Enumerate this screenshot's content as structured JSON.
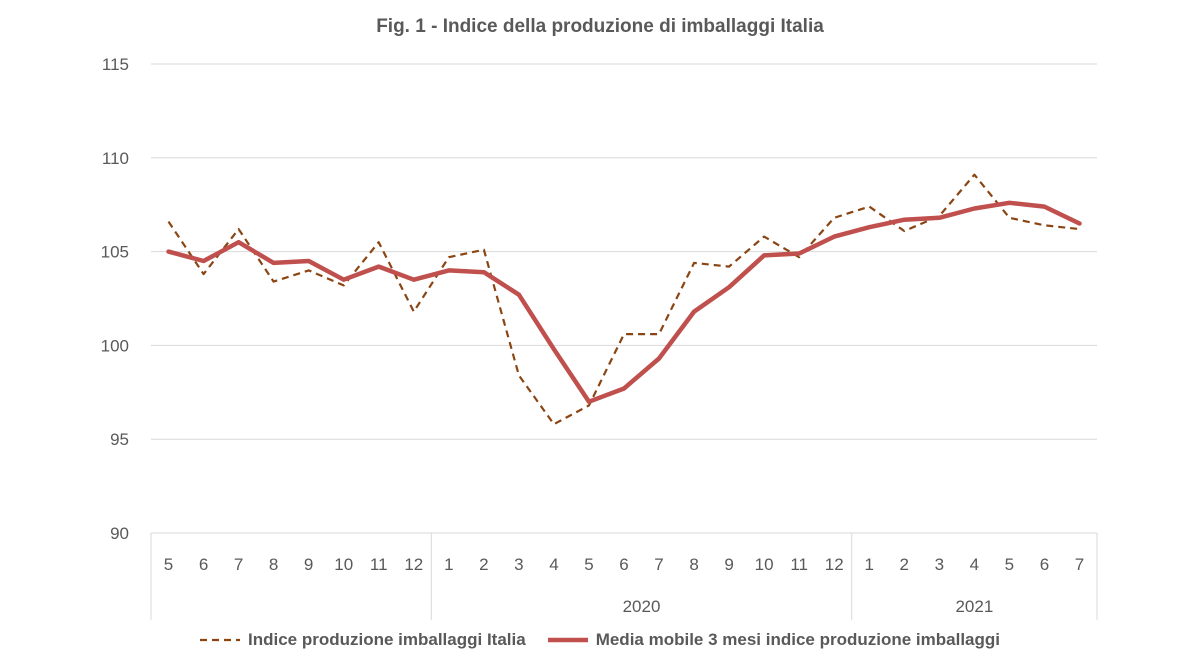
{
  "chart_data": {
    "type": "line",
    "title": "Fig. 1 - Indice della produzione di imballaggi Italia",
    "x": [
      "5",
      "6",
      "7",
      "8",
      "9",
      "10",
      "11",
      "12",
      "1",
      "2",
      "3",
      "4",
      "5",
      "6",
      "7",
      "8",
      "9",
      "10",
      "11",
      "12",
      "1",
      "2",
      "3",
      "4",
      "5",
      "6",
      "7"
    ],
    "year_groups": [
      {
        "label": "",
        "start": 0,
        "end": 7
      },
      {
        "label": "2020",
        "start": 8,
        "end": 19
      },
      {
        "label": "2021",
        "start": 20,
        "end": 26
      }
    ],
    "ylim": [
      90,
      115
    ],
    "yticks": [
      90,
      95,
      100,
      105,
      110,
      115
    ],
    "grid": true,
    "legend_position": "bottom",
    "series": [
      {
        "name": "Indice produzione imballaggi Italia",
        "style": "dashed",
        "color": "#8B4513",
        "values": [
          106.6,
          103.8,
          106.2,
          103.4,
          104.0,
          103.2,
          105.5,
          101.8,
          104.7,
          105.1,
          98.4,
          95.8,
          96.8,
          100.6,
          100.6,
          104.4,
          104.2,
          105.8,
          104.7,
          106.8,
          107.4,
          106.1,
          106.9,
          109.1,
          106.8,
          106.4,
          106.2
        ]
      },
      {
        "name": "Media mobile 3 mesi indice produzione imballaggi",
        "style": "solid",
        "color": "#C0504D",
        "values": [
          105.0,
          104.5,
          105.5,
          104.4,
          104.5,
          103.5,
          104.2,
          103.5,
          104.0,
          103.9,
          102.7,
          99.8,
          97.0,
          97.7,
          99.3,
          101.8,
          103.1,
          104.8,
          104.9,
          105.8,
          106.3,
          106.7,
          106.8,
          107.3,
          107.6,
          107.4,
          106.5
        ]
      }
    ]
  }
}
